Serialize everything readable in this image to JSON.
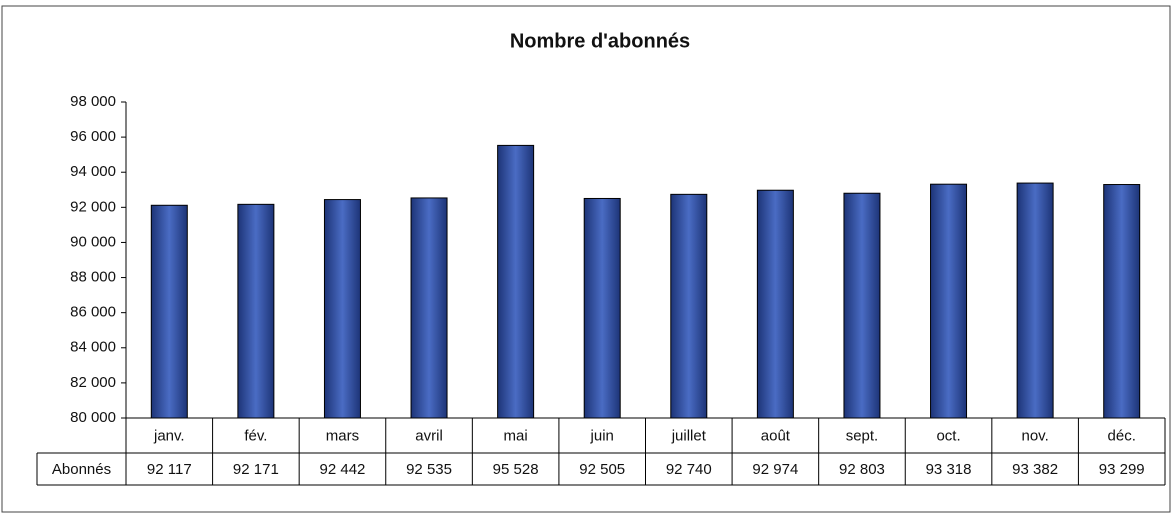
{
  "chart_data": {
    "type": "bar",
    "title": "Nombre d'abonnés",
    "categories": [
      "janv.",
      "fév.",
      "mars",
      "avril",
      "mai",
      "juin",
      "juillet",
      "août",
      "sept.",
      "oct.",
      "nov.",
      "déc."
    ],
    "series": [
      {
        "name": "Abonnés",
        "color": "#2f4f9e",
        "values": [
          92117,
          92171,
          92442,
          92535,
          95528,
          92505,
          92740,
          92974,
          92803,
          93318,
          93382,
          93299
        ],
        "value_labels": [
          "92 117",
          "92 171",
          "92 442",
          "92 535",
          "95 528",
          "92 505",
          "92 740",
          "92 974",
          "92 803",
          "93 318",
          "93 382",
          "93 299"
        ]
      }
    ],
    "ylim": [
      80000,
      98000
    ],
    "yticks": [
      {
        "value": 80000,
        "label": "80 000"
      },
      {
        "value": 82000,
        "label": "82 000"
      },
      {
        "value": 84000,
        "label": "84 000"
      },
      {
        "value": 86000,
        "label": "86 000"
      },
      {
        "value": 88000,
        "label": "88 000"
      },
      {
        "value": 90000,
        "label": "90 000"
      },
      {
        "value": 92000,
        "label": "92 000"
      },
      {
        "value": 94000,
        "label": "94 000"
      },
      {
        "value": 96000,
        "label": "96 000"
      },
      {
        "value": 98000,
        "label": "98 000"
      }
    ],
    "grid": false
  }
}
